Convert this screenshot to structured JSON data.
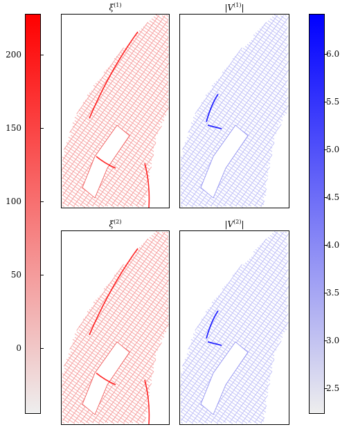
{
  "colors": {
    "red_high": "#ff0000",
    "red_low": "#eeeeee",
    "blue_high": "#0000ff",
    "blue_low": "#eeeeee",
    "red_edge": "#ee5050",
    "blue_edge": "#8a8af0"
  },
  "chart_data": [
    {
      "type": "colorbar",
      "name": "left-colorbar",
      "colormap": [
        "#eeeeee",
        "#ff0000"
      ],
      "range": [
        -45,
        228
      ],
      "ticks": [
        0,
        50,
        100,
        150,
        200
      ],
      "tick_labels": [
        "0",
        "50",
        "100",
        "150",
        "200"
      ],
      "tick_side": "right"
    },
    {
      "type": "colorbar",
      "name": "right-colorbar",
      "colormap": [
        "#eeeeee",
        "#0000ff"
      ],
      "range": [
        2.23,
        6.42
      ],
      "ticks": [
        2.5,
        3.0,
        3.5,
        4.0,
        4.5,
        5.0,
        5.5,
        6.0
      ],
      "tick_labels": [
        "2.5",
        "3.0",
        "3.5",
        "4.0",
        "4.5",
        "5.0",
        "5.5",
        "6.0"
      ],
      "tick_side": "right"
    },
    {
      "type": "network-map",
      "title_main": "ξ",
      "title_sup": "(1)",
      "colormap": "red",
      "axes": "off"
    },
    {
      "type": "network-map",
      "title_main": "|V",
      "title_sup": "(1)",
      "title_end": "|",
      "colormap": "blue",
      "axes": "off"
    },
    {
      "type": "network-map",
      "title_main": "ξ",
      "title_sup": "(2)",
      "colormap": "red",
      "axes": "off"
    },
    {
      "type": "network-map",
      "title_main": "|V",
      "title_sup": "(2)",
      "title_end": "|",
      "colormap": "blue",
      "axes": "off"
    }
  ]
}
